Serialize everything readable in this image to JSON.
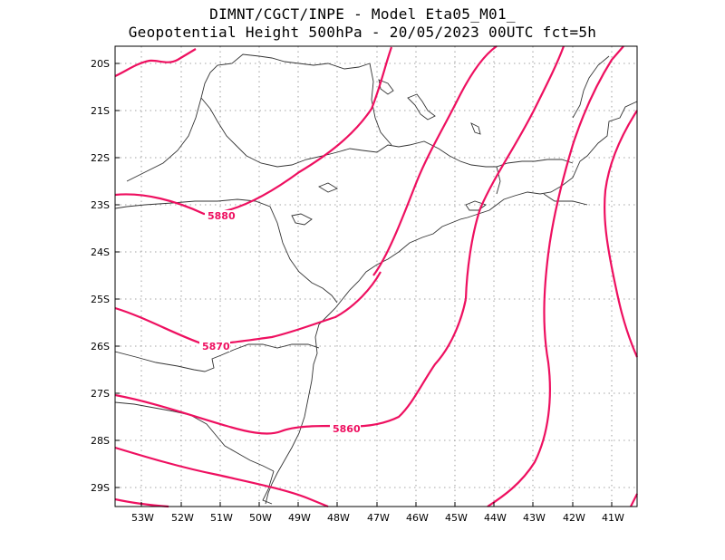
{
  "title": {
    "line1": "DIMNT/CGCT/INPE -  Model Eta05_M01_",
    "line2": "Geopotential Height 500hPa -  20/05/2023 00UTC fct=5h"
  },
  "axes": {
    "y_ticks": [
      "20S",
      "21S",
      "22S",
      "23S",
      "24S",
      "25S",
      "26S",
      "27S",
      "28S",
      "29S"
    ],
    "x_ticks": [
      "53W",
      "52W",
      "51W",
      "50W",
      "49W",
      "48W",
      "47W",
      "46W",
      "45W",
      "44W",
      "43W",
      "42W",
      "41W"
    ]
  },
  "contours": {
    "color": "#ee1060",
    "labels": [
      "5880",
      "5870",
      "5860"
    ]
  }
}
